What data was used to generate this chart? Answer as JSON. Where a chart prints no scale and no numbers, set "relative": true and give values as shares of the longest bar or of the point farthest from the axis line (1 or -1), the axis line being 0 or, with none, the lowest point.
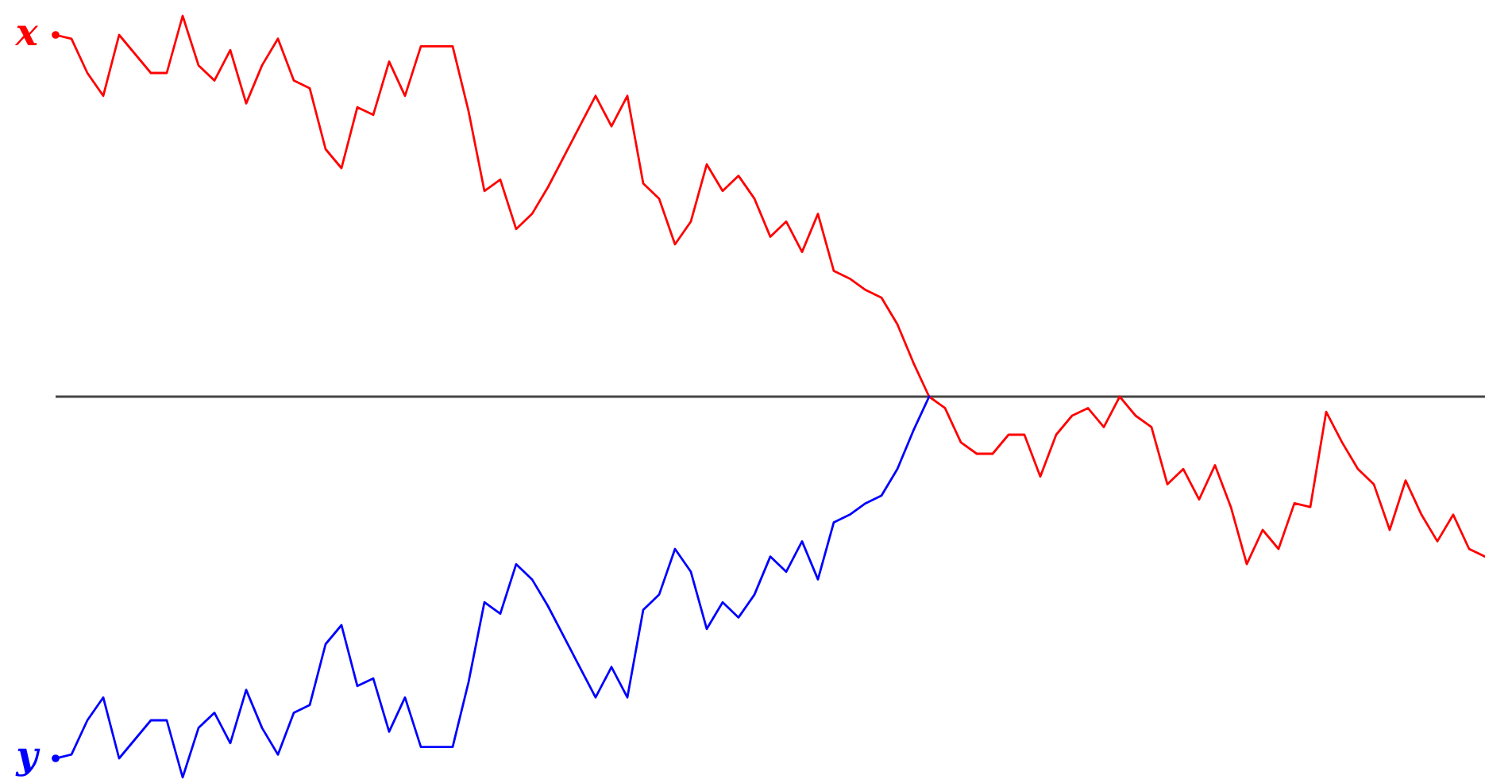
{
  "chart_data": {
    "type": "line",
    "relative": true,
    "categories": [
      null,
      null,
      null,
      null,
      null,
      null,
      null,
      null,
      null,
      null,
      null,
      null,
      null,
      null,
      null,
      null,
      null,
      null,
      null,
      null,
      null,
      null,
      null,
      null,
      null,
      null,
      null,
      null,
      null,
      null,
      null,
      null,
      null,
      null,
      null,
      null,
      null,
      null,
      null,
      null,
      null,
      null,
      null,
      null,
      null,
      null,
      null,
      null,
      null,
      null,
      null,
      null,
      null,
      null,
      null,
      null,
      null,
      null,
      null,
      null,
      null,
      null,
      null,
      null,
      null,
      null,
      null,
      null,
      null,
      null,
      null,
      null,
      null,
      null,
      null,
      null,
      null,
      null,
      null,
      null,
      null,
      null,
      null,
      null,
      null,
      null,
      null,
      null,
      null,
      null,
      null
    ],
    "series": [
      {
        "name": "x",
        "color": "#ff0000",
        "values": [
          0.95,
          0.94,
          0.85,
          0.79,
          0.95,
          0.9,
          0.85,
          0.85,
          1.0,
          0.87,
          0.83,
          0.91,
          0.77,
          0.87,
          0.94,
          0.83,
          0.81,
          0.65,
          0.6,
          0.76,
          0.74,
          0.88,
          0.79,
          0.92,
          0.92,
          0.92,
          0.75,
          0.54,
          0.57,
          0.44,
          0.48,
          0.55,
          0.63,
          0.71,
          0.79,
          0.71,
          0.79,
          0.56,
          0.52,
          0.4,
          0.46,
          0.61,
          0.54,
          0.58,
          0.52,
          0.42,
          0.46,
          0.38,
          0.48,
          0.33,
          0.31,
          0.28,
          0.26,
          0.19,
          0.09,
          0.0,
          -0.03,
          -0.12,
          -0.15,
          -0.15,
          -0.1,
          -0.1,
          -0.21,
          -0.1,
          -0.05,
          -0.03,
          -0.08,
          0.0,
          -0.05,
          -0.08,
          -0.23,
          -0.19,
          -0.27,
          -0.18,
          -0.29,
          -0.44,
          -0.35,
          -0.4,
          -0.28,
          -0.29,
          -0.04,
          -0.12,
          -0.19,
          -0.23,
          -0.35,
          -0.22,
          -0.31,
          -0.38,
          -0.31,
          -0.4,
          -0.42
        ]
      },
      {
        "name": "y",
        "color": "#0000ff",
        "values": [
          -0.95,
          -0.94,
          -0.85,
          -0.79,
          -0.95,
          -0.9,
          -0.85,
          -0.85,
          -1.0,
          -0.87,
          -0.83,
          -0.91,
          -0.77,
          -0.87,
          -0.94,
          -0.83,
          -0.81,
          -0.65,
          -0.6,
          -0.76,
          -0.74,
          -0.88,
          -0.79,
          -0.92,
          -0.92,
          -0.92,
          -0.75,
          -0.54,
          -0.57,
          -0.44,
          -0.48,
          -0.55,
          -0.63,
          -0.71,
          -0.79,
          -0.71,
          -0.79,
          -0.56,
          -0.52,
          -0.4,
          -0.46,
          -0.61,
          -0.54,
          -0.58,
          -0.52,
          -0.42,
          -0.46,
          -0.38,
          -0.48,
          -0.33,
          -0.31,
          -0.28,
          -0.26,
          -0.19,
          -0.09,
          0.0,
          null,
          null,
          null,
          null,
          null,
          null,
          null,
          null,
          null,
          null,
          null,
          null,
          null,
          null,
          null,
          null,
          null,
          null,
          null,
          null,
          null,
          null,
          null,
          null,
          null,
          null,
          null,
          null,
          null,
          null,
          null,
          null,
          null,
          null,
          null
        ]
      }
    ]
  }
}
